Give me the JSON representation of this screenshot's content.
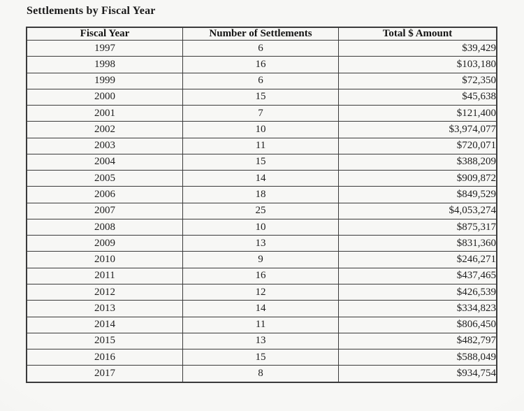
{
  "page": {
    "title": "Settlements by Fiscal Year"
  },
  "colors": {
    "border": "#3b3b3b",
    "text": "#1e1e1e",
    "background": "#f3f3f1"
  },
  "table": {
    "columns": [
      "Fiscal Year",
      "Number of Settlements",
      "Total $ Amount"
    ],
    "rows": [
      {
        "year": "1997",
        "count": "6",
        "amount": "$39,429"
      },
      {
        "year": "1998",
        "count": "16",
        "amount": "$103,180"
      },
      {
        "year": "1999",
        "count": "6",
        "amount": "$72,350"
      },
      {
        "year": "2000",
        "count": "15",
        "amount": "$45,638"
      },
      {
        "year": "2001",
        "count": "7",
        "amount": "$121,400"
      },
      {
        "year": "2002",
        "count": "10",
        "amount": "$3,974,077"
      },
      {
        "year": "2003",
        "count": "11",
        "amount": "$720,071"
      },
      {
        "year": "2004",
        "count": "15",
        "amount": "$388,209"
      },
      {
        "year": "2005",
        "count": "14",
        "amount": "$909,872"
      },
      {
        "year": "2006",
        "count": "18",
        "amount": "$849,529"
      },
      {
        "year": "2007",
        "count": "25",
        "amount": "$4,053,274"
      },
      {
        "year": "2008",
        "count": "10",
        "amount": "$875,317"
      },
      {
        "year": "2009",
        "count": "13",
        "amount": "$831,360"
      },
      {
        "year": "2010",
        "count": "9",
        "amount": "$246,271"
      },
      {
        "year": "2011",
        "count": "16",
        "amount": "$437,465"
      },
      {
        "year": "2012",
        "count": "12",
        "amount": "$426,539"
      },
      {
        "year": "2013",
        "count": "14",
        "amount": "$334,823"
      },
      {
        "year": "2014",
        "count": "11",
        "amount": "$806,450"
      },
      {
        "year": "2015",
        "count": "13",
        "amount": "$482,797"
      },
      {
        "year": "2016",
        "count": "15",
        "amount": "$588,049"
      },
      {
        "year": "2017",
        "count": "8",
        "amount": "$934,754"
      }
    ]
  },
  "chart_data": {
    "type": "table",
    "title": "Settlements by Fiscal Year",
    "columns": [
      "Fiscal Year",
      "Number of Settlements",
      "Total $ Amount"
    ],
    "rows": [
      [
        "1997",
        6,
        39429
      ],
      [
        "1998",
        16,
        103180
      ],
      [
        "1999",
        6,
        72350
      ],
      [
        "2000",
        15,
        45638
      ],
      [
        "2001",
        7,
        121400
      ],
      [
        "2002",
        10,
        3974077
      ],
      [
        "2003",
        11,
        720071
      ],
      [
        "2004",
        15,
        388209
      ],
      [
        "2005",
        14,
        909872
      ],
      [
        "2006",
        18,
        849529
      ],
      [
        "2007",
        25,
        4053274
      ],
      [
        "2008",
        10,
        875317
      ],
      [
        "2009",
        13,
        831360
      ],
      [
        "2010",
        9,
        246271
      ],
      [
        "2011",
        16,
        437465
      ],
      [
        "2012",
        12,
        426539
      ],
      [
        "2013",
        14,
        334823
      ],
      [
        "2014",
        11,
        806450
      ],
      [
        "2015",
        13,
        482797
      ],
      [
        "2016",
        15,
        588049
      ],
      [
        "2017",
        8,
        934754
      ]
    ]
  }
}
